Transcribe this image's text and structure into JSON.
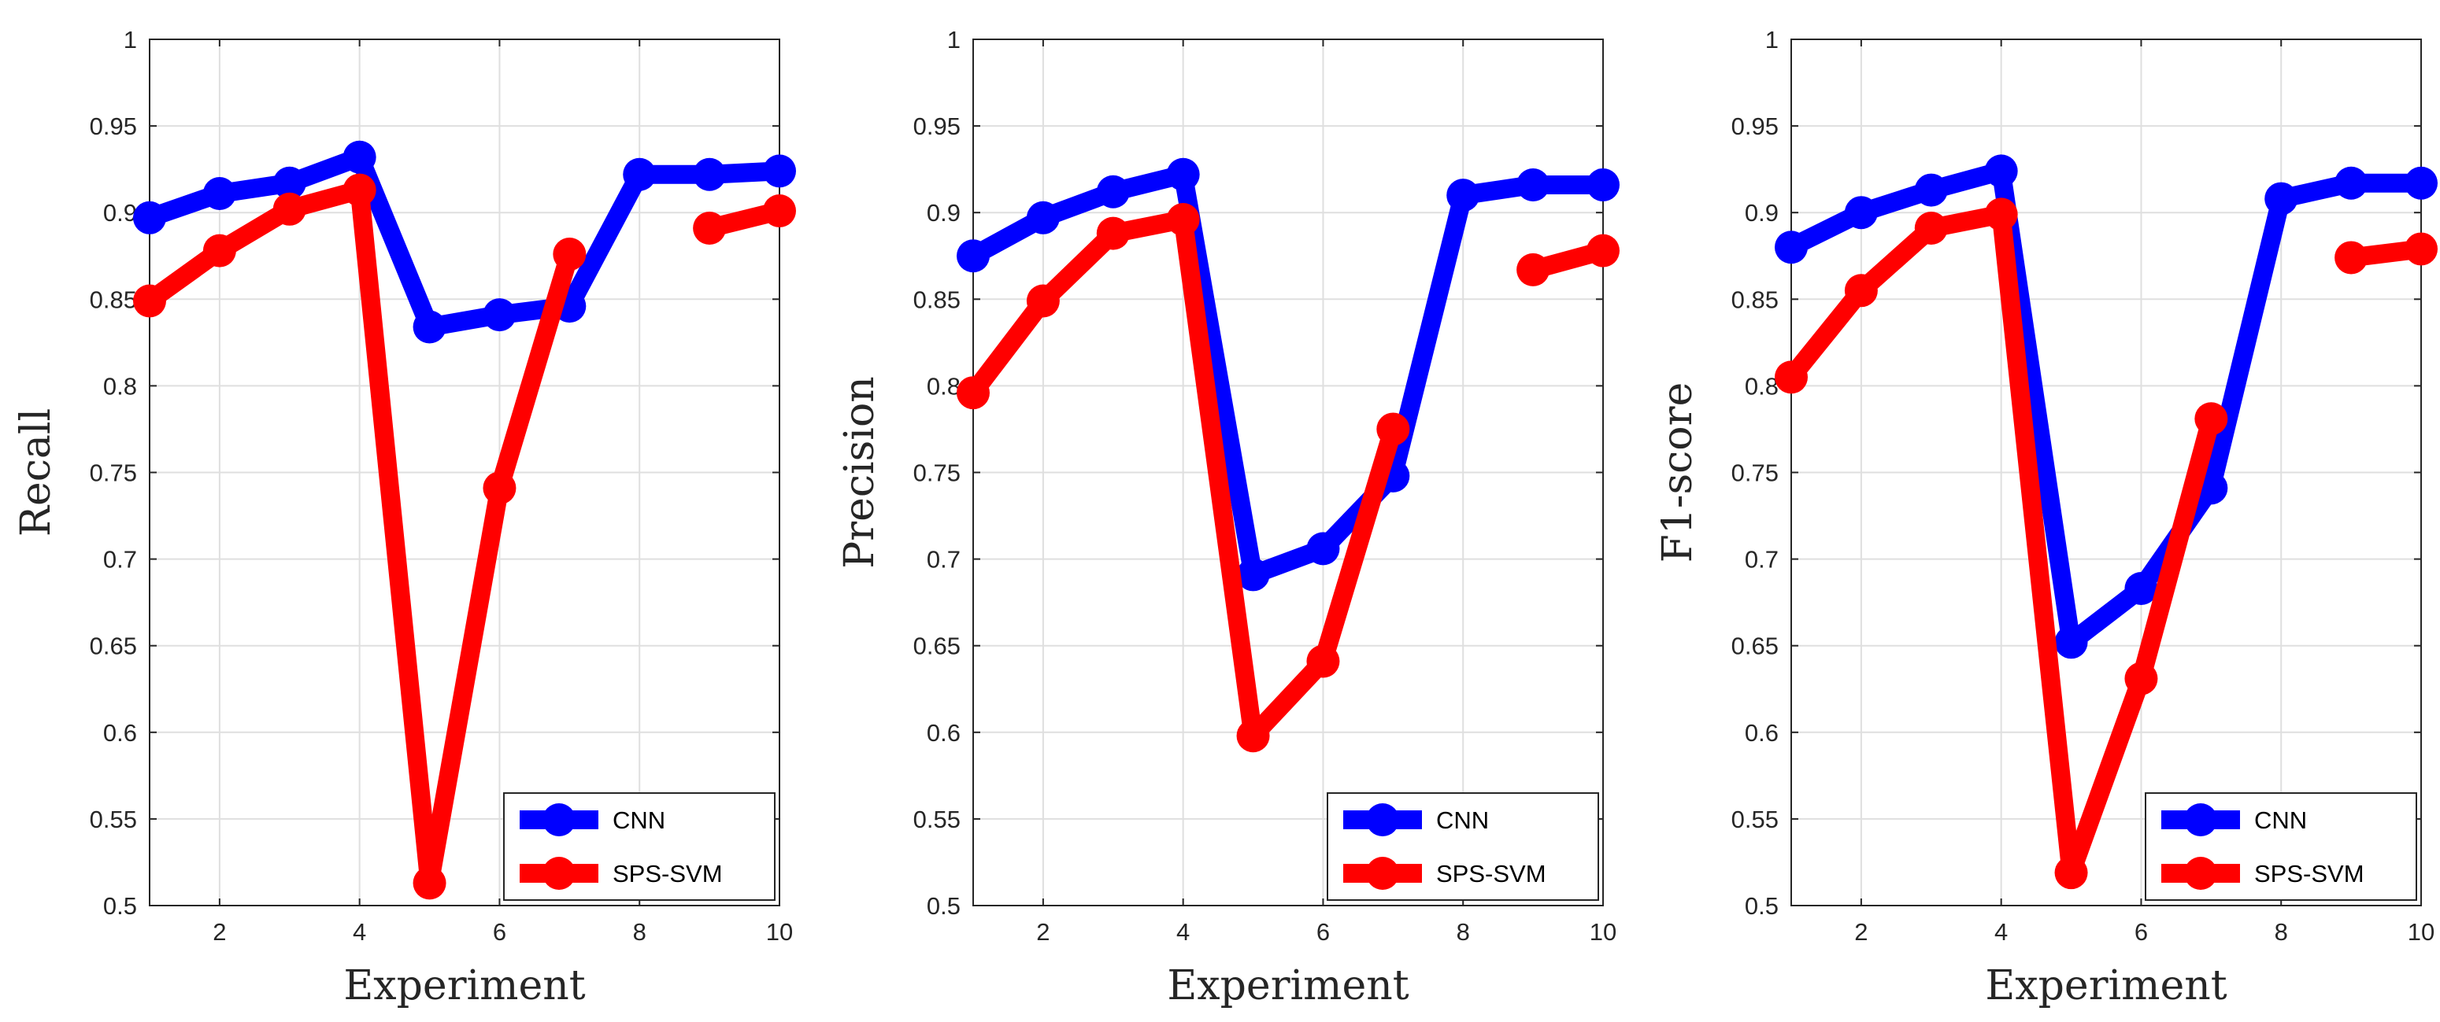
{
  "colors": {
    "cnn": "#0000ff",
    "svm": "#ff0000",
    "grid": "#dfdfdf",
    "axis": "#262626"
  },
  "chart_data": [
    {
      "type": "line",
      "title": "",
      "xlabel": "Experiment",
      "ylabel": "Recall",
      "xlim": [
        1,
        10
      ],
      "ylim": [
        0.5,
        1
      ],
      "x_ticks": [
        2,
        4,
        6,
        8,
        10
      ],
      "y_ticks": [
        0.5,
        0.55,
        0.6,
        0.65,
        0.7,
        0.75,
        0.8,
        0.85,
        0.9,
        0.95,
        1
      ],
      "x_tick_labels": [
        "2",
        "4",
        "6",
        "8",
        "10"
      ],
      "y_tick_labels": [
        "0.5",
        "0.55",
        "0.6",
        "0.65",
        "0.7",
        "0.75",
        "0.8",
        "0.85",
        "0.9",
        "0.95",
        "1"
      ],
      "grid": true,
      "legend_position": "bottom-right",
      "x": [
        1,
        2,
        3,
        4,
        5,
        6,
        7,
        8,
        9,
        10
      ],
      "series": [
        {
          "name": "CNN",
          "color": "#0000ff",
          "values": [
            0.897,
            0.911,
            0.917,
            0.932,
            0.834,
            0.841,
            0.846,
            0.922,
            0.922,
            0.924
          ]
        },
        {
          "name": "SPS-SVM",
          "color": "#ff0000",
          "values": [
            0.849,
            0.878,
            0.902,
            0.913,
            0.513,
            0.741,
            0.876,
            null,
            0.891,
            0.901
          ]
        }
      ]
    },
    {
      "type": "line",
      "title": "",
      "xlabel": "Experiment",
      "ylabel": "Precision",
      "xlim": [
        1,
        10
      ],
      "ylim": [
        0.5,
        1
      ],
      "x_ticks": [
        2,
        4,
        6,
        8,
        10
      ],
      "y_ticks": [
        0.5,
        0.55,
        0.6,
        0.65,
        0.7,
        0.75,
        0.8,
        0.85,
        0.9,
        0.95,
        1
      ],
      "x_tick_labels": [
        "2",
        "4",
        "6",
        "8",
        "10"
      ],
      "y_tick_labels": [
        "0.5",
        "0.55",
        "0.6",
        "0.65",
        "0.7",
        "0.75",
        "0.8",
        "0.85",
        "0.9",
        "0.95",
        "1"
      ],
      "grid": true,
      "legend_position": "bottom-right",
      "x": [
        1,
        2,
        3,
        4,
        5,
        6,
        7,
        8,
        9,
        10
      ],
      "series": [
        {
          "name": "CNN",
          "color": "#0000ff",
          "values": [
            0.875,
            0.897,
            0.912,
            0.922,
            0.691,
            0.706,
            0.748,
            0.91,
            0.916,
            0.916
          ]
        },
        {
          "name": "SPS-SVM",
          "color": "#ff0000",
          "values": [
            0.796,
            0.849,
            0.888,
            0.896,
            0.598,
            0.641,
            0.775,
            null,
            0.867,
            0.878
          ]
        }
      ]
    },
    {
      "type": "line",
      "title": "",
      "xlabel": "Experiment",
      "ylabel": "F1-score",
      "xlim": [
        1,
        10
      ],
      "ylim": [
        0.5,
        1
      ],
      "x_ticks": [
        2,
        4,
        6,
        8,
        10
      ],
      "y_ticks": [
        0.5,
        0.55,
        0.6,
        0.65,
        0.7,
        0.75,
        0.8,
        0.85,
        0.9,
        0.95,
        1
      ],
      "x_tick_labels": [
        "2",
        "4",
        "6",
        "8",
        "10"
      ],
      "y_tick_labels": [
        "0.5",
        "0.55",
        "0.6",
        "0.65",
        "0.7",
        "0.75",
        "0.8",
        "0.85",
        "0.9",
        "0.95",
        "1"
      ],
      "grid": true,
      "legend_position": "bottom-right",
      "x": [
        1,
        2,
        3,
        4,
        5,
        6,
        7,
        8,
        9,
        10
      ],
      "series": [
        {
          "name": "CNN",
          "color": "#0000ff",
          "values": [
            0.88,
            0.9,
            0.913,
            0.924,
            0.652,
            0.683,
            0.741,
            0.908,
            0.917,
            0.917
          ]
        },
        {
          "name": "SPS-SVM",
          "color": "#ff0000",
          "values": [
            0.805,
            0.855,
            0.891,
            0.899,
            0.519,
            0.631,
            0.781,
            null,
            0.874,
            0.879
          ]
        }
      ]
    }
  ]
}
